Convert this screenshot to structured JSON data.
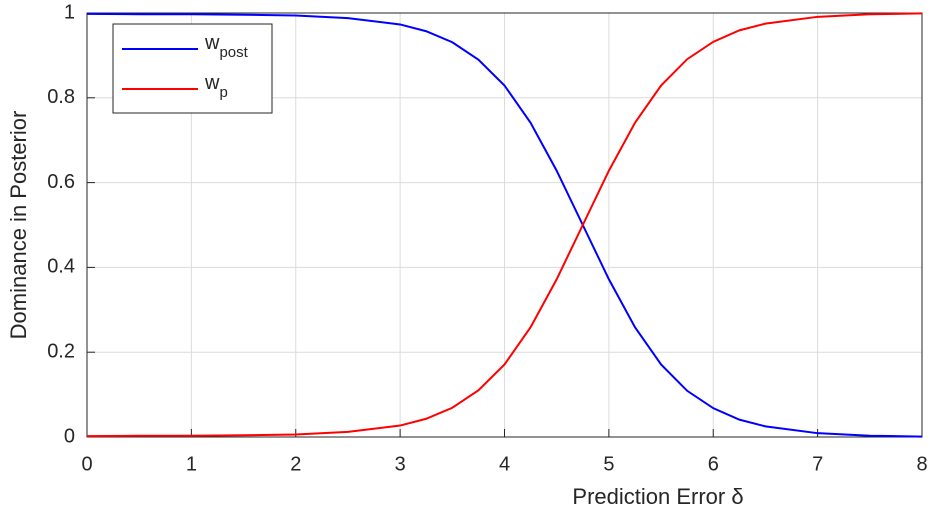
{
  "chart_data": {
    "type": "line",
    "x_label": "Prediction Error δ",
    "y_label": "Dominance in Posterior",
    "x": [
      0,
      0.5,
      1,
      1.5,
      2,
      2.5,
      3,
      3.25,
      3.5,
      3.75,
      4,
      4.25,
      4.5,
      4.75,
      5,
      5.25,
      5.5,
      5.75,
      6,
      6.25,
      6.5,
      7,
      7.5,
      8
    ],
    "series": [
      {
        "name": "w",
        "subscript": "post",
        "color": "#0000ff",
        "values": [
          0.998,
          0.997,
          0.997,
          0.996,
          0.994,
          0.988,
          0.973,
          0.957,
          0.931,
          0.89,
          0.829,
          0.741,
          0.628,
          0.5,
          0.372,
          0.259,
          0.171,
          0.109,
          0.068,
          0.041,
          0.025,
          0.009,
          0.003,
          0.001
        ]
      },
      {
        "name": "w",
        "subscript": "p",
        "color": "#ff0000",
        "values": [
          0.002,
          0.003,
          0.003,
          0.004,
          0.006,
          0.012,
          0.027,
          0.043,
          0.069,
          0.11,
          0.171,
          0.259,
          0.372,
          0.5,
          0.628,
          0.741,
          0.829,
          0.891,
          0.932,
          0.959,
          0.975,
          0.991,
          0.997,
          0.999
        ]
      }
    ],
    "xlim": [
      0,
      8
    ],
    "xticks": [
      0,
      1,
      2,
      3,
      4,
      5,
      6,
      7,
      8
    ],
    "ylim": [
      0,
      1
    ],
    "yticks": [
      0,
      0.2,
      0.4,
      0.6,
      0.8,
      1
    ],
    "grid": true,
    "legend": "top-left"
  }
}
